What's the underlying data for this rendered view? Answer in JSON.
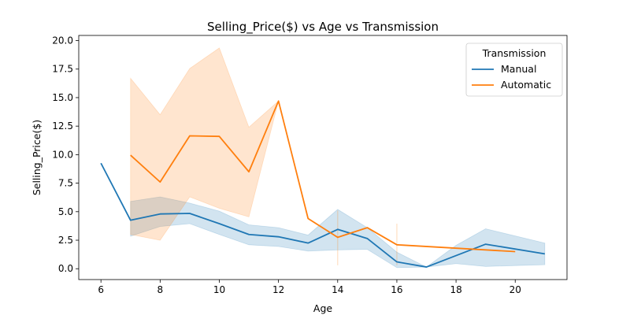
{
  "chart_data": {
    "type": "line",
    "title": "Selling_Price($) vs Age vs Transmission",
    "xlabel": "Age",
    "ylabel": "Selling_Price($)",
    "xlim": [
      5.25,
      21.75
    ],
    "ylim": [
      -0.95,
      20.45
    ],
    "xticks": [
      6,
      8,
      10,
      12,
      14,
      16,
      18,
      20
    ],
    "yticks": [
      0.0,
      2.5,
      5.0,
      7.5,
      10.0,
      12.5,
      15.0,
      17.5,
      20.0
    ],
    "ytick_labels": [
      "0.0",
      "2.5",
      "5.0",
      "7.5",
      "10.0",
      "12.5",
      "15.0",
      "17.5",
      "20.0"
    ],
    "grid": false,
    "legend": {
      "title": "Transmission",
      "placement": "upper right"
    },
    "series": [
      {
        "name": "Manual",
        "color": "#1f77b4",
        "x": [
          6,
          7,
          8,
          9,
          10,
          11,
          12,
          13,
          14,
          15,
          16,
          17,
          19,
          21
        ],
        "y": [
          9.25,
          4.25,
          4.8,
          4.85,
          3.95,
          3.0,
          2.8,
          2.25,
          3.45,
          2.65,
          0.6,
          0.15,
          2.15,
          1.3
        ],
        "ci_x": [
          7,
          8,
          9,
          10,
          11,
          12,
          13,
          14,
          15,
          16,
          17,
          18,
          19,
          21
        ],
        "ci_low": [
          2.85,
          3.7,
          3.95,
          3.0,
          2.1,
          1.95,
          1.55,
          1.65,
          1.7,
          0.1,
          0.15,
          0.45,
          0.2,
          0.35
        ],
        "ci_high": [
          5.9,
          6.3,
          5.75,
          5.05,
          3.85,
          3.6,
          2.95,
          5.2,
          3.6,
          1.45,
          0.15,
          2.05,
          3.5,
          2.25
        ]
      },
      {
        "name": "Automatic",
        "color": "#ff7f0e",
        "x": [
          7,
          8,
          9,
          10,
          11,
          12,
          13,
          14,
          15,
          16,
          20
        ],
        "y": [
          9.95,
          7.6,
          11.65,
          11.6,
          8.5,
          14.7,
          4.4,
          2.75,
          3.6,
          2.1,
          1.5
        ],
        "ci_x": [
          7,
          8,
          9,
          10,
          11,
          12
        ],
        "ci_low": [
          3.0,
          2.5,
          6.3,
          5.3,
          4.55,
          14.7
        ],
        "ci_high": [
          16.7,
          13.5,
          17.55,
          19.35,
          12.4,
          14.7
        ],
        "ci_vlines": [
          {
            "x": 14,
            "low": 0.3,
            "high": 5.1
          },
          {
            "x": 16,
            "low": 0.3,
            "high": 3.95
          }
        ]
      }
    ]
  }
}
